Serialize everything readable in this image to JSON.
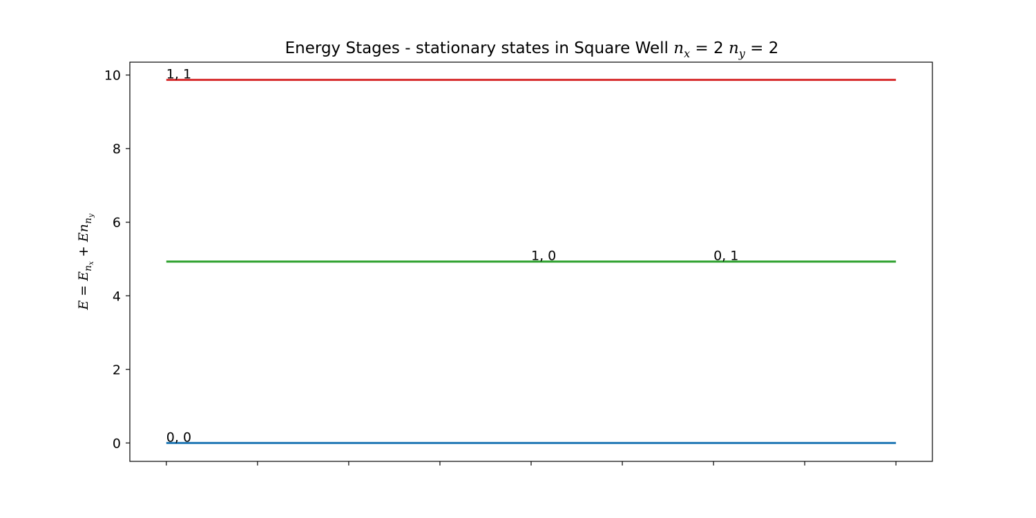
{
  "chart_data": {
    "type": "line",
    "title": {
      "prefix": "Energy Stages - stationary states in Square Well ",
      "nx_symbol": "n",
      "nx_sub": "x",
      "nx_value": " = 2 ",
      "ny_symbol": "n",
      "ny_sub": "y",
      "ny_value": " = 2"
    },
    "ylabel": {
      "E": "E",
      "eq": " = ",
      "E1": "E",
      "n1": "n",
      "n1sub": "x",
      "plus": " + ",
      "E2": "E",
      "n2": "n",
      "n2sub": "y"
    },
    "xlabel": "",
    "xlim": [
      -0.4,
      8.4
    ],
    "x_ticks": [
      0,
      1,
      2,
      3,
      4,
      5,
      6,
      7,
      8
    ],
    "ylim": [
      -0.5,
      10.35
    ],
    "y_ticks": [
      0,
      2,
      4,
      6,
      8,
      10
    ],
    "y_tick_labels": [
      "0",
      "2",
      "4",
      "6",
      "8",
      "10"
    ],
    "grid": false,
    "series": [
      {
        "x": [
          0,
          8
        ],
        "y": [
          0,
          0
        ],
        "color": "#1f77b4"
      },
      {
        "x": [
          0,
          8
        ],
        "y": [
          4.93,
          4.93
        ],
        "color": "#2ca02c"
      },
      {
        "x": [
          0,
          8
        ],
        "y": [
          9.87,
          9.87
        ],
        "color": "#d62728"
      }
    ],
    "annotations": [
      {
        "text": "0, 0",
        "x": 0,
        "y": 0
      },
      {
        "text": "1, 0",
        "x": 4,
        "y": 4.93
      },
      {
        "text": "0, 1",
        "x": 6,
        "y": 4.93
      },
      {
        "text": "1, 1",
        "x": 0,
        "y": 9.87
      }
    ]
  }
}
